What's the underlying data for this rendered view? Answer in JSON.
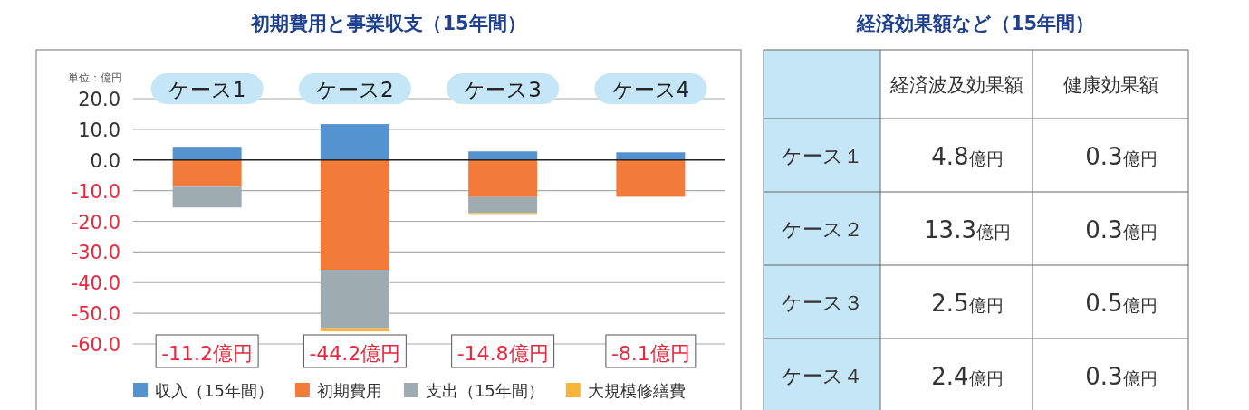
{
  "chart_data": [
    {
      "type": "bar",
      "title": "初期費用と事業収支（15年間）",
      "ylabel": "単位：億円",
      "categories": [
        "ケース1",
        "ケース2",
        "ケース3",
        "ケース4"
      ],
      "stacked": true,
      "series": [
        {
          "name": "収入（15年間）",
          "color": "#5592d0",
          "values": [
            4.3,
            11.7,
            2.8,
            2.5
          ]
        },
        {
          "name": "初期費用",
          "color": "#f27b3a",
          "values": [
            -8.7,
            -35.8,
            -12.1,
            -12.0
          ]
        },
        {
          "name": "支出（15年間）",
          "color": "#9eabb0",
          "values": [
            -6.8,
            -19.0,
            -5.2,
            null
          ]
        },
        {
          "name": "大規模修繕費",
          "color": "#f9b53a",
          "values": [
            null,
            -1.1,
            -0.3,
            null
          ]
        }
      ],
      "annotations": [
        "-11.2億円",
        "-44.2億円",
        "-14.8億円",
        "-8.1億円"
      ],
      "ylim": [
        -60,
        20
      ],
      "yticks": [
        {
          "value": 20,
          "label": "20.0"
        },
        {
          "value": 10,
          "label": "10.0"
        },
        {
          "value": 0,
          "label": "0.0"
        },
        {
          "value": -10,
          "label": "-10.0"
        },
        {
          "value": -20,
          "label": "-20.0"
        },
        {
          "value": -30,
          "label": "-30.0"
        },
        {
          "value": -40,
          "label": "-40.0"
        },
        {
          "value": -50,
          "label": "-50.0"
        },
        {
          "value": -60,
          "label": "-60.0"
        }
      ],
      "grid": "y",
      "legend": "bottom"
    },
    {
      "type": "other",
      "title": "経済効果額など（15年間）",
      "categories": [
        "経済波及効果額",
        "健康効果額"
      ],
      "y_categories": [
        "ケース１",
        "ケース２",
        "ケース３",
        "ケース４"
      ],
      "cell_labels": [
        [
          "4.8億円",
          "0.3億円"
        ],
        [
          "13.3億円",
          "0.3億円"
        ],
        [
          "2.5億円",
          "0.5億円"
        ],
        [
          "2.4億円",
          "0.3億円"
        ]
      ]
    }
  ]
}
